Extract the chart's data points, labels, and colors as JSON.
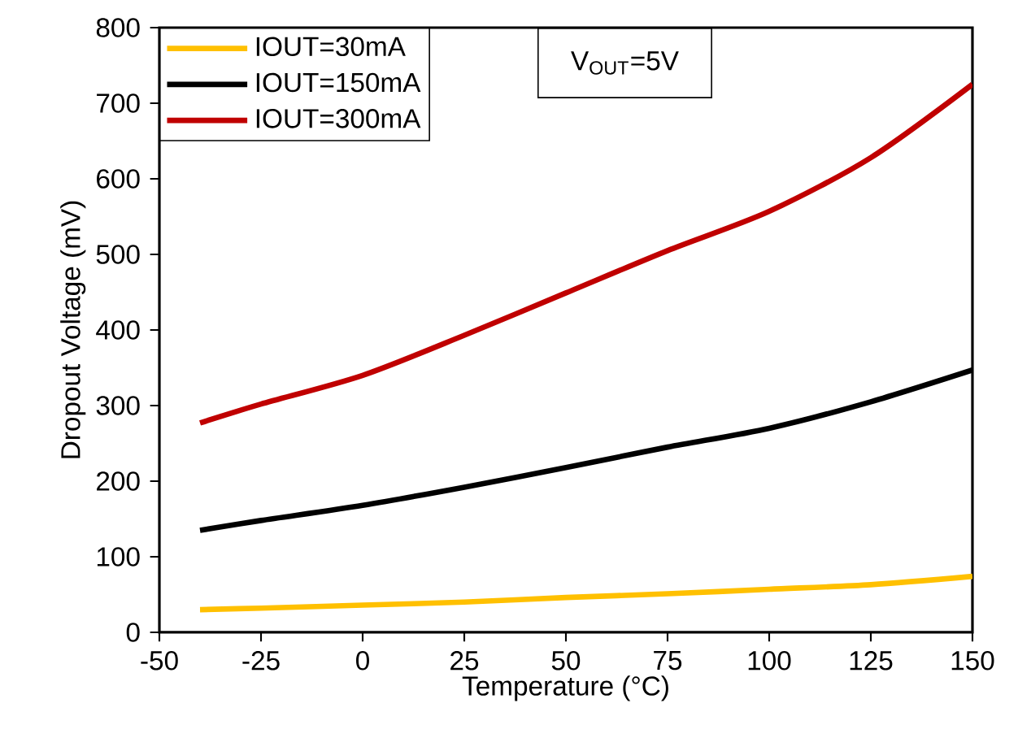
{
  "chart_data": {
    "type": "line",
    "xlabel": "Temperature (°C)",
    "ylabel": "Dropout Voltage (mV)",
    "xlim": [
      -50,
      150
    ],
    "ylim": [
      0,
      800
    ],
    "xticks": [
      -50,
      -25,
      0,
      25,
      50,
      75,
      100,
      125,
      150
    ],
    "yticks": [
      0,
      100,
      200,
      300,
      400,
      500,
      600,
      700,
      800
    ],
    "x": [
      -40,
      -25,
      0,
      25,
      50,
      75,
      100,
      125,
      150
    ],
    "series": [
      {
        "name": "IOUT=30mA",
        "color": "#ffc000",
        "values": [
          30,
          32,
          36,
          40,
          46,
          51,
          57,
          63,
          74
        ]
      },
      {
        "name": "IOUT=150mA",
        "color": "#000000",
        "values": [
          135,
          148,
          168,
          192,
          218,
          245,
          270,
          305,
          347
        ]
      },
      {
        "name": "IOUT=300mA",
        "color": "#c00000",
        "values": [
          277,
          302,
          340,
          393,
          449,
          505,
          557,
          628,
          725
        ]
      }
    ],
    "annotations": [
      "V$_{OUT}$=5V"
    ],
    "grid": false,
    "legend": "top left",
    "marker": "none",
    "line_style": "solid"
  }
}
